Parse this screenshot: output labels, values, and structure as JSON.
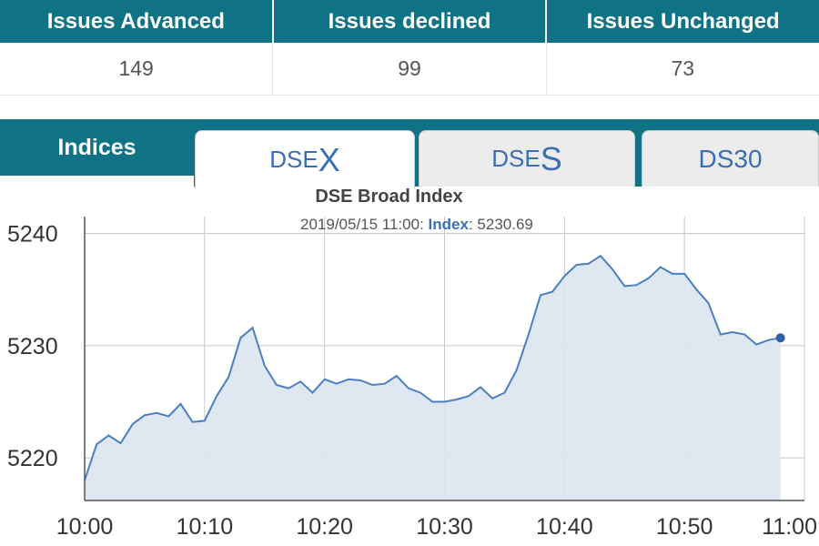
{
  "stats": {
    "headers": [
      "Issues Advanced",
      "Issues declined",
      "Issues Unchanged"
    ],
    "values": [
      "149",
      "99",
      "73"
    ]
  },
  "indices": {
    "label": "Indices",
    "tabs": [
      {
        "small": "DSE",
        "big": "X",
        "active": true
      },
      {
        "small": "DSE",
        "big": "S",
        "active": false
      },
      {
        "plain": "DS30",
        "active": false
      }
    ]
  },
  "tooltip": {
    "time": "2019/05/15 11:00",
    "sep": ": ",
    "key": "Index",
    "colon": ": ",
    "value": "5230.69"
  },
  "colors": {
    "header": "#0f7385",
    "line": "#4a7fc0",
    "area": "#dbe4f0",
    "grid": "#c8c8c8"
  },
  "chart_data": {
    "type": "area",
    "title": "DSE Broad Index",
    "xlabel": "",
    "ylabel": "",
    "ylim": [
      5216.2,
      5241.5
    ],
    "xlim": [
      0,
      60
    ],
    "grid": true,
    "x_ticks": [
      {
        "x": 0,
        "label": "10:00"
      },
      {
        "x": 10,
        "label": "10:10"
      },
      {
        "x": 20,
        "label": "10:20"
      },
      {
        "x": 30,
        "label": "10:30"
      },
      {
        "x": 40,
        "label": "10:40"
      },
      {
        "x": 50,
        "label": "10:50"
      },
      {
        "x": 60,
        "label": "11:00"
      }
    ],
    "y_ticks": [
      5220,
      5230,
      5240
    ],
    "series": [
      {
        "values": [
          [
            0,
            5218.0
          ],
          [
            1,
            5221.2
          ],
          [
            2,
            5222.0
          ],
          [
            3,
            5221.3
          ],
          [
            4,
            5223.0
          ],
          [
            5,
            5223.8
          ],
          [
            6,
            5224.0
          ],
          [
            7,
            5223.7
          ],
          [
            8,
            5224.8
          ],
          [
            9,
            5223.2
          ],
          [
            10,
            5223.3
          ],
          [
            11,
            5225.5
          ],
          [
            12,
            5227.2
          ],
          [
            13,
            5230.7
          ],
          [
            14,
            5231.6
          ],
          [
            15,
            5228.2
          ],
          [
            16,
            5226.5
          ],
          [
            17,
            5226.2
          ],
          [
            18,
            5226.8
          ],
          [
            19,
            5225.8
          ],
          [
            20,
            5227.0
          ],
          [
            21,
            5226.6
          ],
          [
            22,
            5227.0
          ],
          [
            23,
            5226.9
          ],
          [
            24,
            5226.5
          ],
          [
            25,
            5226.6
          ],
          [
            26,
            5227.3
          ],
          [
            27,
            5226.2
          ],
          [
            28,
            5225.8
          ],
          [
            29,
            5225.0
          ],
          [
            30,
            5225.0
          ],
          [
            31,
            5225.2
          ],
          [
            32,
            5225.5
          ],
          [
            33,
            5226.3
          ],
          [
            34,
            5225.3
          ],
          [
            35,
            5225.8
          ],
          [
            36,
            5227.8
          ],
          [
            37,
            5231.0
          ],
          [
            38,
            5234.5
          ],
          [
            39,
            5234.8
          ],
          [
            40,
            5236.2
          ],
          [
            41,
            5237.2
          ],
          [
            42,
            5237.3
          ],
          [
            43,
            5238.0
          ],
          [
            44,
            5236.8
          ],
          [
            45,
            5235.3
          ],
          [
            46,
            5235.4
          ],
          [
            47,
            5236.0
          ],
          [
            48,
            5237.0
          ],
          [
            49,
            5236.4
          ],
          [
            50,
            5236.4
          ],
          [
            51,
            5235.0
          ],
          [
            52,
            5233.8
          ],
          [
            53,
            5231.0
          ],
          [
            54,
            5231.2
          ],
          [
            55,
            5231.0
          ],
          [
            56,
            5230.1
          ],
          [
            57,
            5230.5
          ],
          [
            58,
            5230.69
          ]
        ]
      }
    ]
  }
}
